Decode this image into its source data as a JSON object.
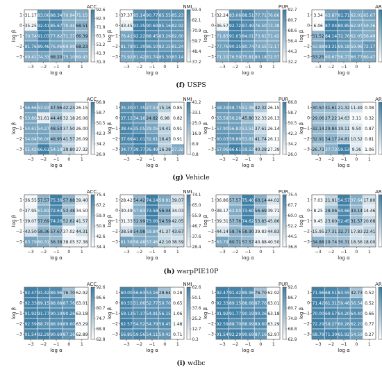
{
  "colors": {
    "low": "#ffffff",
    "high": "#3f7fa6",
    "grid": "#ffffff"
  },
  "common": {
    "x_ticks": [
      "−3",
      "−2",
      "−1",
      "0",
      "1"
    ],
    "y_ticks": [
      "1",
      "0",
      "−1",
      "−2",
      "−3"
    ],
    "xlabel": "log α",
    "ylabel": "log β"
  },
  "groups": [
    {
      "tag": "(f)",
      "name": "USPS"
    },
    {
      "tag": "(g)",
      "name": "Vehicle"
    },
    {
      "tag": "(h)",
      "name": "warpPIE10P"
    },
    {
      "tag": "(i)",
      "name": "wdbc"
    }
  ],
  "chart_data": [
    {
      "type": "heatmap",
      "group": "USPS",
      "title": "ACC",
      "xlabel": "log α",
      "ylabel": "log β",
      "x": [
        -3,
        -2,
        -1,
        0,
        1
      ],
      "y": [
        1,
        0,
        -1,
        -2,
        -3
      ],
      "values": [
        [
          31.17,
          83.06,
          88.34,
          70.94,
          71.15
        ],
        [
          35.25,
          92.41,
          85.67,
          70.44,
          68.51
        ],
        [
          70.74,
          91.03,
          77.82,
          71.37,
          66.39
        ],
        [
          81.76,
          89.46,
          76.06,
          69.99,
          68.23
        ],
        [
          69.41,
          74.33,
          68.2,
          75.1,
          69.43
        ]
      ],
      "colorbar": {
        "min": 31.0,
        "max": 92.6,
        "ticks": [
          "92.6",
          "82.0",
          "71.8",
          "61.5",
          "51.2",
          "41.3",
          "31.0"
        ]
      }
    },
    {
      "type": "heatmap",
      "group": "USPS",
      "title": "NMI",
      "xlabel": "log α",
      "ylabel": "log β",
      "x": [
        -3,
        -2,
        -1,
        0,
        1
      ],
      "y": [
        1,
        0,
        -1,
        -2,
        -3
      ],
      "values": [
        [
          37.37,
          85.14,
          90.77,
          85.55,
          85.23
        ],
        [
          43.45,
          93.35,
          90.69,
          85.16,
          82.92
        ],
        [
          76.41,
          92.22,
          88.45,
          83.26,
          82.6
        ],
        [
          81.78,
          91.3,
          86.1,
          82.15,
          81.24
        ],
        [
          75.92,
          81.42,
          81.74,
          85.3,
          83.14
        ]
      ],
      "colorbar": {
        "min": 37.2,
        "max": 93.4,
        "ticks": [
          "93.4",
          "82.1",
          "70.9",
          "59.7",
          "48.4",
          "37.2"
        ]
      }
    },
    {
      "type": "heatmap",
      "group": "USPS",
      "title": "PUR",
      "xlabel": "log α",
      "ylabel": "log β",
      "x": [
        -3,
        -2,
        -1,
        0,
        1
      ],
      "y": [
        1,
        0,
        -1,
        -2,
        -3
      ],
      "values": [
        [
          32.24,
          83.06,
          88.51,
          77.71,
          76.66
        ],
        [
          36.57,
          92.72,
          87.49,
          76.5,
          73.38
        ],
        [
          71.83,
          91.03,
          84.01,
          73.61,
          71.42
        ],
        [
          77.76,
          90.35,
          80.74,
          73.55,
          72.17
        ],
        [
          71.1,
          76.59,
          75.81,
          80.18,
          72.57
        ]
      ],
      "colorbar": {
        "min": 32.2,
        "max": 92.7,
        "ticks": [
          "92.7",
          "80.7",
          "68.6",
          "56.4",
          "44.3",
          "32.2"
        ]
      }
    },
    {
      "type": "heatmap",
      "group": "USPS",
      "title": "ARI",
      "xlabel": "log α",
      "ylabel": "log β",
      "x": [
        -3,
        -2,
        -1,
        0,
        1
      ],
      "y": [
        1,
        0,
        -1,
        -2,
        -3
      ],
      "values": [
        [
          3.34,
          63.87,
          81.71,
          62.01,
          65.67
        ],
        [
          6.06,
          87.04,
          80.85,
          62.97,
          59.36
        ],
        [
          51.52,
          84.14,
          72.76,
          62.05,
          56.49
        ],
        [
          63.88,
          83.31,
          69.18,
          59.96,
          72.17
        ],
        [
          53.25,
          60.67,
          56.77,
          66.77,
          60.47
        ]
      ],
      "colorbar": {
        "min": 3.3,
        "max": 87.0,
        "ticks": [
          "87.0",
          "73.0",
          "59.1",
          "45.2",
          "31.2",
          "17.2",
          "3.3"
        ]
      }
    },
    {
      "type": "heatmap",
      "group": "Vehicle",
      "title": "ACC",
      "xlabel": "log α",
      "ylabel": "log β",
      "x": [
        -3,
        -2,
        -1,
        0,
        1
      ],
      "y": [
        1,
        0,
        -1,
        -2,
        -3
      ],
      "values": [
        [
          56.66,
          53.93,
          47.96,
          42.23,
          26.15
        ],
        [
          53.8,
          31.61,
          44.46,
          32.18,
          26.06
        ],
        [
          54.61,
          54.27,
          48.5,
          37.5,
          26.0
        ],
        [
          54.04,
          56.0,
          48.95,
          41.57,
          26.09
        ],
        [
          51.42,
          66.61,
          54.18,
          39.8,
          27.32
        ]
      ],
      "colorbar": {
        "min": 26.0,
        "max": 66.8,
        "ticks": [
          "66.8",
          "58.7",
          "50.5",
          "42.3",
          "34.2",
          "26.0"
        ]
      }
    },
    {
      "type": "heatmap",
      "group": "Vehicle",
      "title": "NMI",
      "xlabel": "log α",
      "ylabel": "log β",
      "x": [
        -3,
        -2,
        -1,
        0,
        1
      ],
      "y": [
        1,
        0,
        -1,
        -2,
        -3
      ],
      "values": [
        [
          35.3,
          37.35,
          27.53,
          15.16,
          0.85
        ],
        [
          37.12,
          34.16,
          24.82,
          6.98,
          0.82
        ],
        [
          38.46,
          35.05,
          29.05,
          14.41,
          0.91
        ],
        [
          37.69,
          41.01,
          32.61,
          16.43,
          0.91
        ],
        [
          34.77,
          39.77,
          36.49,
          16.38,
          27.32
        ]
      ],
      "colorbar": {
        "min": 0.8,
        "max": 41.2,
        "ticks": [
          "41.2",
          "33.1",
          "25.0",
          "16.9",
          "8.9",
          "0.8"
        ]
      }
    },
    {
      "type": "heatmap",
      "group": "Vehicle",
      "title": "PUR",
      "xlabel": "log α",
      "ylabel": "log β",
      "x": [
        -3,
        -2,
        -1,
        0,
        1
      ],
      "y": [
        1,
        0,
        -1,
        -2,
        -3
      ],
      "values": [
        [
          58.29,
          58.75,
          51.38,
          42.32,
          26.15
        ],
        [
          55.59,
          56.28,
          45.8,
          32.33,
          26.13
        ],
        [
          57.9,
          56.83,
          51.51,
          37.61,
          26.14
        ],
        [
          60.03,
          59.89,
          53.81,
          41.74,
          26.11
        ],
        [
          57.06,
          66.61,
          59.53,
          40.28,
          27.39
        ]
      ],
      "colorbar": {
        "min": 26.0,
        "max": 66.8,
        "ticks": [
          "66.8",
          "58.7",
          "50.5",
          "42.3",
          "34.2",
          "26.0"
        ]
      }
    },
    {
      "type": "heatmap",
      "group": "Vehicle",
      "title": "ARI",
      "xlabel": "log α",
      "ylabel": "log β",
      "x": [
        -3,
        -2,
        -1,
        0,
        1
      ],
      "y": [
        1,
        0,
        -1,
        -2,
        -3
      ],
      "values": [
        [
          30.5,
          31.61,
          21.32,
          11.49,
          0.08
        ],
        [
          29.06,
          27.22,
          14.63,
          3.11,
          0.32
        ],
        [
          32.14,
          29.84,
          19.11,
          9.5,
          0.87
        ],
        [
          32.91,
          34.17,
          24.81,
          10.52,
          0.81
        ],
        [
          26.73,
          37.73,
          59.53,
          9.36,
          1.06
        ]
      ],
      "colorbar": {
        "min": 0.1,
        "max": 59.6,
        "ticks": [
          "59.6",
          "47.7",
          "35.8",
          "23.9",
          "11.9",
          "0.1"
        ]
      }
    },
    {
      "type": "heatmap",
      "group": "warpPIE10P",
      "title": "ACC",
      "xlabel": "log α",
      "ylabel": "log β",
      "x": [
        -3,
        -2,
        -1,
        0,
        1
      ],
      "y": [
        1,
        0,
        -1,
        -2,
        -3
      ],
      "values": [
        [
          36.55,
          57.57,
          75.36,
          57.88,
          39.4
        ],
        [
          37.95,
          61.83,
          72.64,
          53.48,
          34.5
        ],
        [
          39.07,
          57.69,
          74.26,
          52.62,
          41.57
        ],
        [
          43.5,
          58.36,
          57.67,
          37.02,
          44.31
        ],
        [
          63.79,
          60.31,
          56.38,
          38.05,
          37.38
        ]
      ],
      "colorbar": {
        "min": 34.4,
        "max": 75.4,
        "ticks": [
          "75.4",
          "67.2",
          "59.0",
          "50.8",
          "42.6",
          "34.4"
        ]
      }
    },
    {
      "type": "heatmap",
      "group": "warpPIE10P",
      "title": "NMI",
      "xlabel": "log α",
      "ylabel": "log β",
      "x": [
        -3,
        -2,
        -1,
        0,
        1
      ],
      "y": [
        1,
        0,
        -1,
        -2,
        -3
      ],
      "values": [
        [
          28.42,
          54.42,
          74.14,
          59.91,
          39.07
        ],
        [
          30.49,
          57.83,
          73.58,
          56.44,
          34.03
        ],
        [
          31.33,
          52.99,
          73.0,
          54.59,
          42.05
        ],
        [
          38.58,
          54.98,
          59.84,
          41.37,
          43.67
        ],
        [
          61.58,
          58.48,
          57.46,
          42.1,
          38.59
        ]
      ],
      "colorbar": {
        "min": 28.4,
        "max": 74.1,
        "ticks": [
          "74.1",
          "65.0",
          "55.9",
          "46.7",
          "37.6",
          "28.4"
        ]
      }
    },
    {
      "type": "heatmap",
      "group": "warpPIE10P",
      "title": "PUR",
      "xlabel": "log α",
      "ylabel": "log β",
      "x": [
        -3,
        -2,
        -1,
        0,
        1
      ],
      "y": [
        1,
        0,
        -1,
        -2,
        -3
      ],
      "values": [
        [
          36.86,
          57.57,
          75.4,
          60.14,
          44.02
        ],
        [
          38.17,
          62.0,
          73.6,
          56.69,
          39.71
        ],
        [
          39.31,
          57.76,
          74.62,
          53.83,
          45.86
        ],
        [
          44.14,
          58.76,
          58.9,
          39.83,
          44.83
        ],
        [
          63.79,
          60.71,
          57.57,
          40.88,
          40.5
        ]
      ],
      "colorbar": {
        "min": 36.8,
        "max": 75.4,
        "ticks": [
          "75.4",
          "67.7",
          "60.0",
          "52.2",
          "44.5",
          "36.8"
        ]
      }
    },
    {
      "type": "heatmap",
      "group": "warpPIE10P",
      "title": "ARI",
      "xlabel": "log α",
      "ylabel": "log β",
      "x": [
        -3,
        -2,
        -1,
        0,
        1
      ],
      "y": [
        1,
        0,
        -1,
        -2,
        -3
      ],
      "values": [
        [
          7.03,
          21.91,
          54.57,
          37.64,
          17.8
        ],
        [
          8.25,
          28.06,
          50.66,
          33.14,
          14.46
        ],
        [
          9.45,
          23.6,
          52.45,
          31.57,
          20.68
        ],
        [
          15.95,
          27.31,
          32.77,
          17.83,
          22.41
        ],
        [
          34.88,
          29.74,
          30.31,
          18.56,
          18.0
        ]
      ],
      "colorbar": {
        "min": 7.0,
        "max": 54.6,
        "ticks": [
          "54.6",
          "45.1",
          "35.6",
          "26.0",
          "16.5",
          "7.0"
        ]
      }
    },
    {
      "type": "heatmap",
      "group": "wdbc",
      "title": "ACC",
      "xlabel": "log α",
      "ylabel": "log β",
      "x": [
        -3,
        -2,
        -1,
        0,
        1
      ],
      "y": [
        1,
        0,
        -1,
        -2,
        -3
      ],
      "values": [
        [
          92.47,
          91.42,
          89.96,
          76.7,
          62.92
        ],
        [
          92.33,
          89.15,
          88.68,
          87.76,
          63.01
        ],
        [
          91.92,
          91.77,
          90.19,
          90.26,
          63.18
        ],
        [
          92.59,
          88.7,
          88.99,
          89.6,
          63.29
        ],
        [
          91.54,
          92.29,
          90.69,
          87.16,
          62.89
        ]
      ],
      "colorbar": {
        "min": 62.8,
        "max": 92.6,
        "ticks": [
          "92.6",
          "86.6",
          "80.7",
          "74.7",
          "68.8",
          "62.8"
        ]
      }
    },
    {
      "type": "heatmap",
      "group": "wdbc",
      "title": "NMI",
      "xlabel": "log α",
      "ylabel": "log β",
      "x": [
        -3,
        -2,
        -1,
        0,
        1
      ],
      "y": [
        1,
        0,
        -1,
        -2,
        -3
      ],
      "values": [
        [
          60.0,
          56.63,
          53.16,
          28.64,
          0.28
        ],
        [
          60.55,
          51.66,
          52.77,
          50.7,
          0.65
        ],
        [
          59.13,
          57.37,
          54.91,
          56.15,
          1.06
        ],
        [
          62.57,
          54.52,
          54.79,
          56.45,
          1.48
        ],
        [
          56.85,
          59.56,
          54.11,
          50.42,
          0.71
        ]
      ],
      "colorbar": {
        "min": 0.3,
        "max": 62.6,
        "ticks": [
          "62.6",
          "50.1",
          "37.6",
          "25.2",
          "12.7",
          "0.3"
        ]
      }
    },
    {
      "type": "heatmap",
      "group": "wdbc",
      "title": "PUR",
      "xlabel": "log α",
      "ylabel": "log β",
      "x": [
        -3,
        -2,
        -1,
        0,
        1
      ],
      "y": [
        1,
        0,
        -1,
        -2,
        -3
      ],
      "values": [
        [
          92.47,
          91.42,
          89.96,
          76.7,
          62.92
        ],
        [
          92.33,
          89.15,
          88.68,
          87.76,
          63.01
        ],
        [
          91.92,
          91.77,
          90.19,
          90.26,
          63.18
        ],
        [
          92.59,
          88.7,
          88.99,
          89.6,
          63.29
        ],
        [
          91.54,
          92.29,
          90.69,
          87.16,
          62.97
        ]
      ],
      "colorbar": {
        "min": 62.9,
        "max": 92.6,
        "ticks": [
          "92.6",
          "86.7",
          "80.7",
          "74.8",
          "68.8",
          "62.9"
        ]
      }
    },
    {
      "type": "heatmap",
      "group": "wdbc",
      "title": "ARI",
      "xlabel": "log α",
      "ylabel": "log β",
      "x": [
        -3,
        -2,
        -1,
        0,
        1
      ],
      "y": [
        1,
        0,
        -1,
        -2,
        -3
      ],
      "values": [
        [
          71.96,
          68.51,
          63.55,
          32.73,
          0.52
        ],
        [
          71.42,
          61.31,
          59.46,
          56.54,
          0.52
        ],
        [
          70.0,
          69.57,
          64.2,
          64.4,
          0.66
        ],
        [
          72.29,
          59.27,
          60.26,
          62.2,
          0.77
        ],
        [
          68.79,
          71.3,
          65.92,
          54.59,
          0.27
        ]
      ],
      "colorbar": {
        "min": 0.2,
        "max": 72.4,
        "ticks": [
          "72.4",
          "58.0",
          "43.5",
          "29.1",
          "14.6",
          "0.2"
        ]
      }
    }
  ]
}
